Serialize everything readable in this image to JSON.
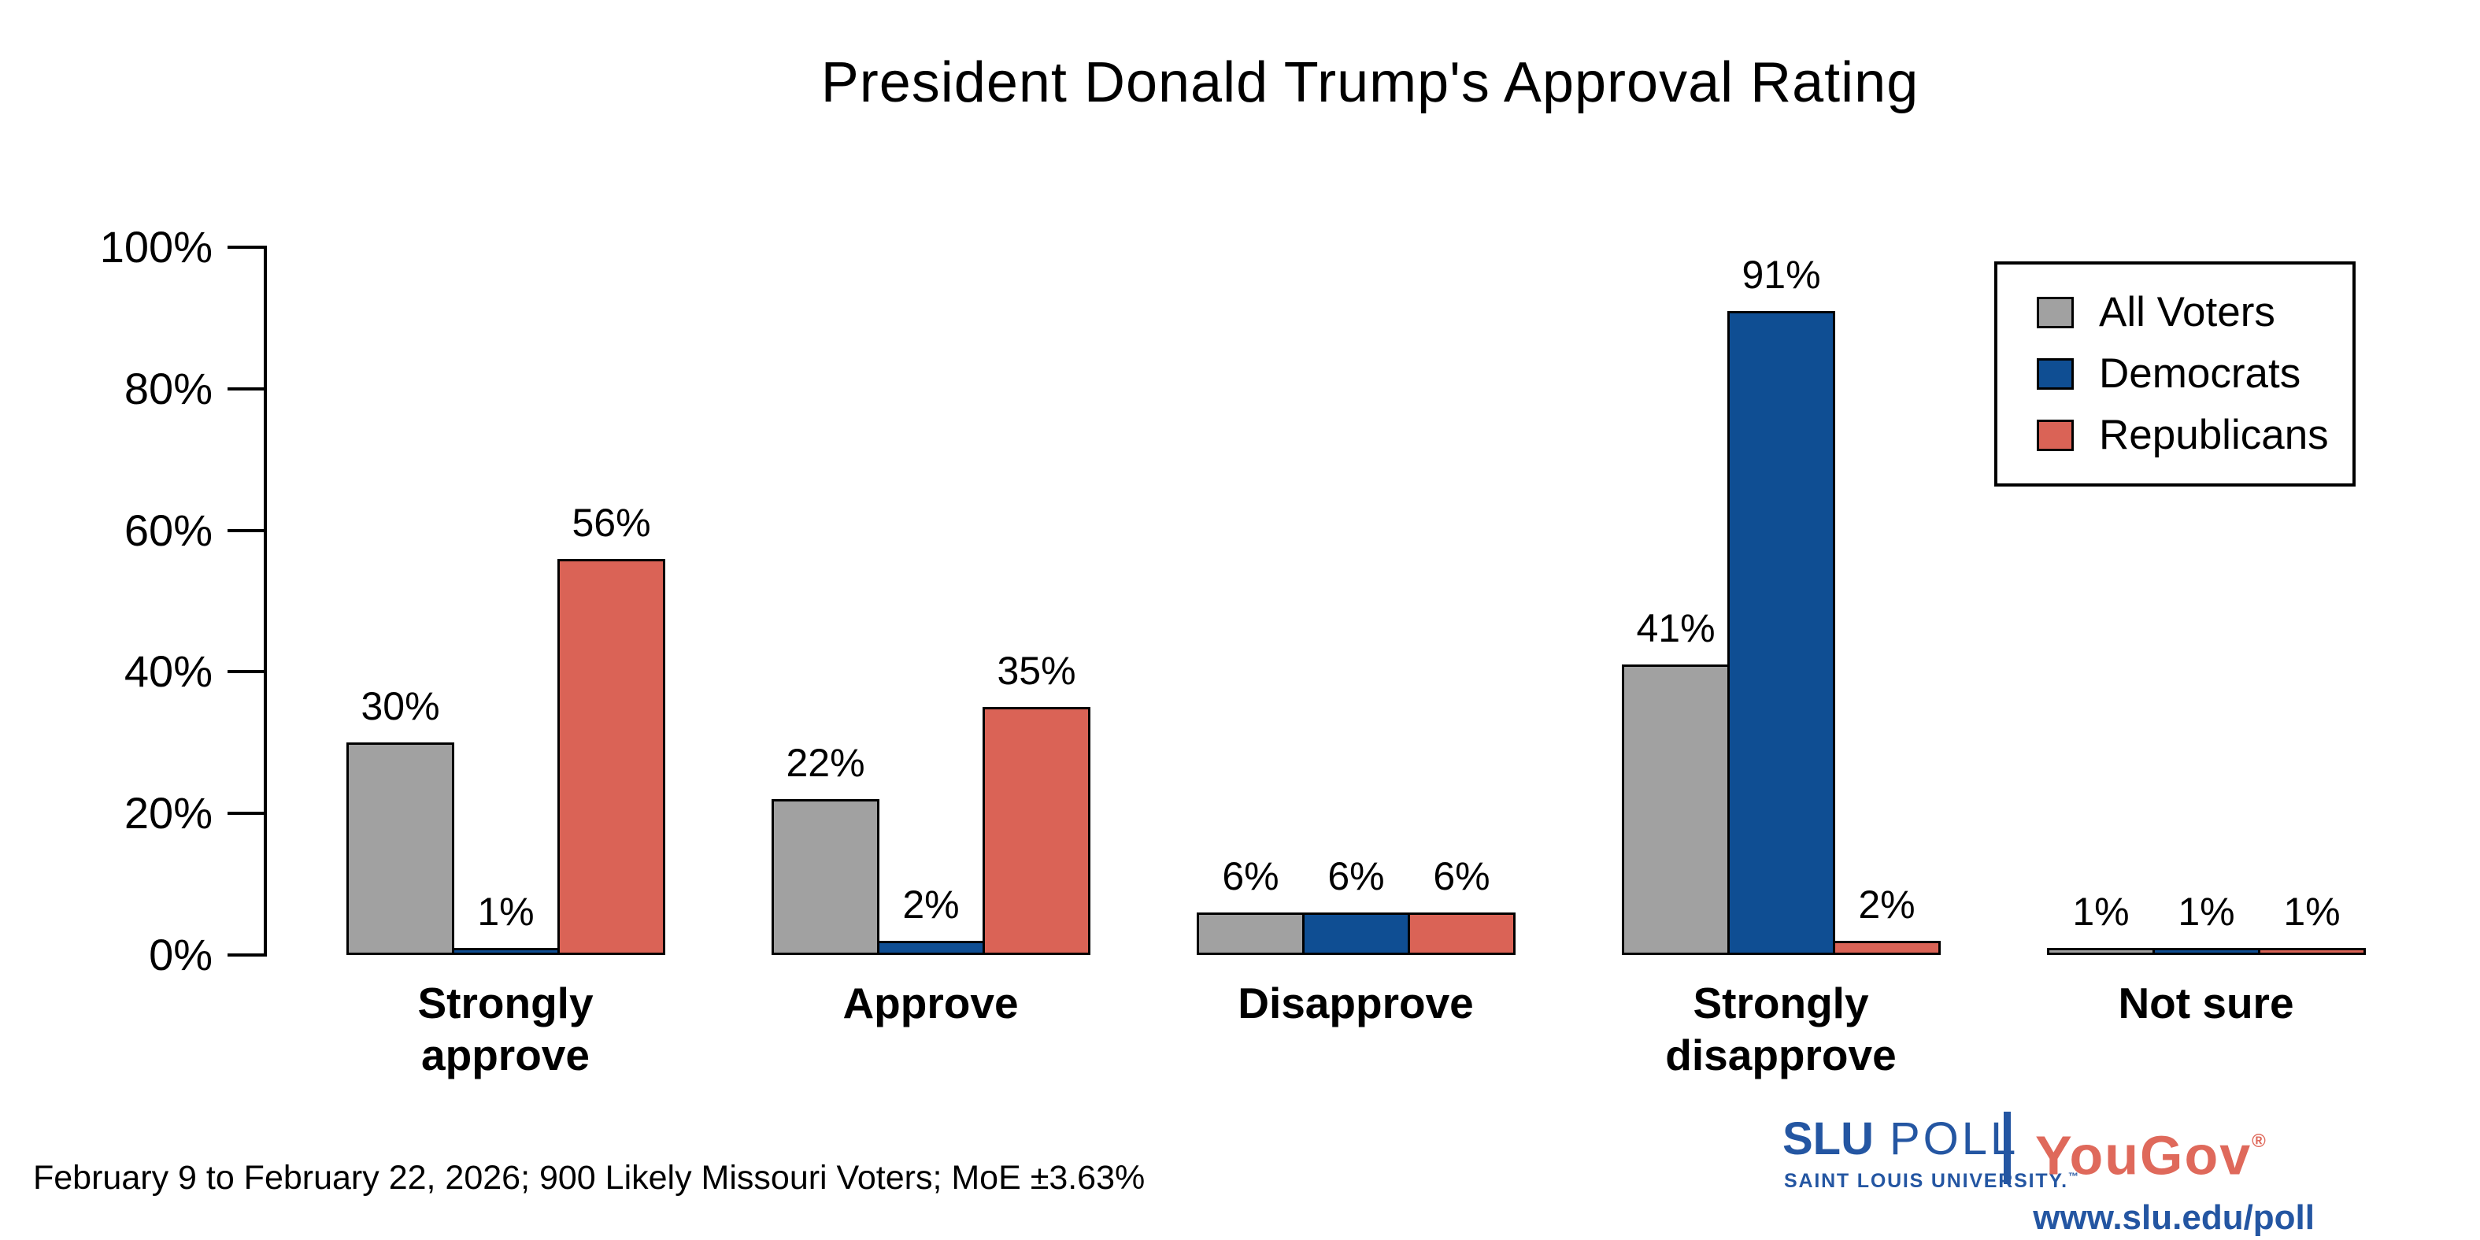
{
  "title": "President Donald Trump's Approval Rating",
  "chart_data": {
    "type": "bar",
    "title": "President Donald Trump's Approval Rating",
    "categories": [
      "Strongly approve",
      "Approve",
      "Disapprove",
      "Strongly disapprove",
      "Not sure"
    ],
    "category_lines": [
      [
        "Strongly",
        "approve"
      ],
      [
        "Approve"
      ],
      [
        "Disapprove"
      ],
      [
        "Strongly",
        "disapprove"
      ],
      [
        "Not sure"
      ]
    ],
    "series": [
      {
        "name": "All Voters",
        "color": "#A1A1A1",
        "values": [
          30,
          22,
          6,
          41,
          1
        ]
      },
      {
        "name": "Democrats",
        "color": "#0F4E93",
        "values": [
          1,
          2,
          6,
          91,
          1
        ]
      },
      {
        "name": "Republicans",
        "color": "#DA6356",
        "values": [
          56,
          35,
          6,
          2,
          1
        ]
      }
    ],
    "value_label_suffix": "%",
    "ylim": [
      0,
      100
    ],
    "yticks": [
      0,
      20,
      40,
      60,
      80,
      100
    ],
    "ytick_suffix": "%",
    "grid": false,
    "legend_position": "top-right",
    "bar_outline_color": "#000000",
    "axis_color": "#000000"
  },
  "footer": {
    "note": "February 9 to February 22, 2026; 900 Likely Missouri Voters; MoE ±3.63%"
  },
  "branding": {
    "slu": "SLU",
    "poll": "POLL",
    "slu_subtext": "SAINT LOUIS UNIVERSITY.",
    "slu_trademark": "™",
    "yougov": "YouGov",
    "yougov_registered": "®",
    "url": "www.slu.edu/poll",
    "slu_blue": "#2456A2",
    "yougov_red": "#DF695B"
  }
}
